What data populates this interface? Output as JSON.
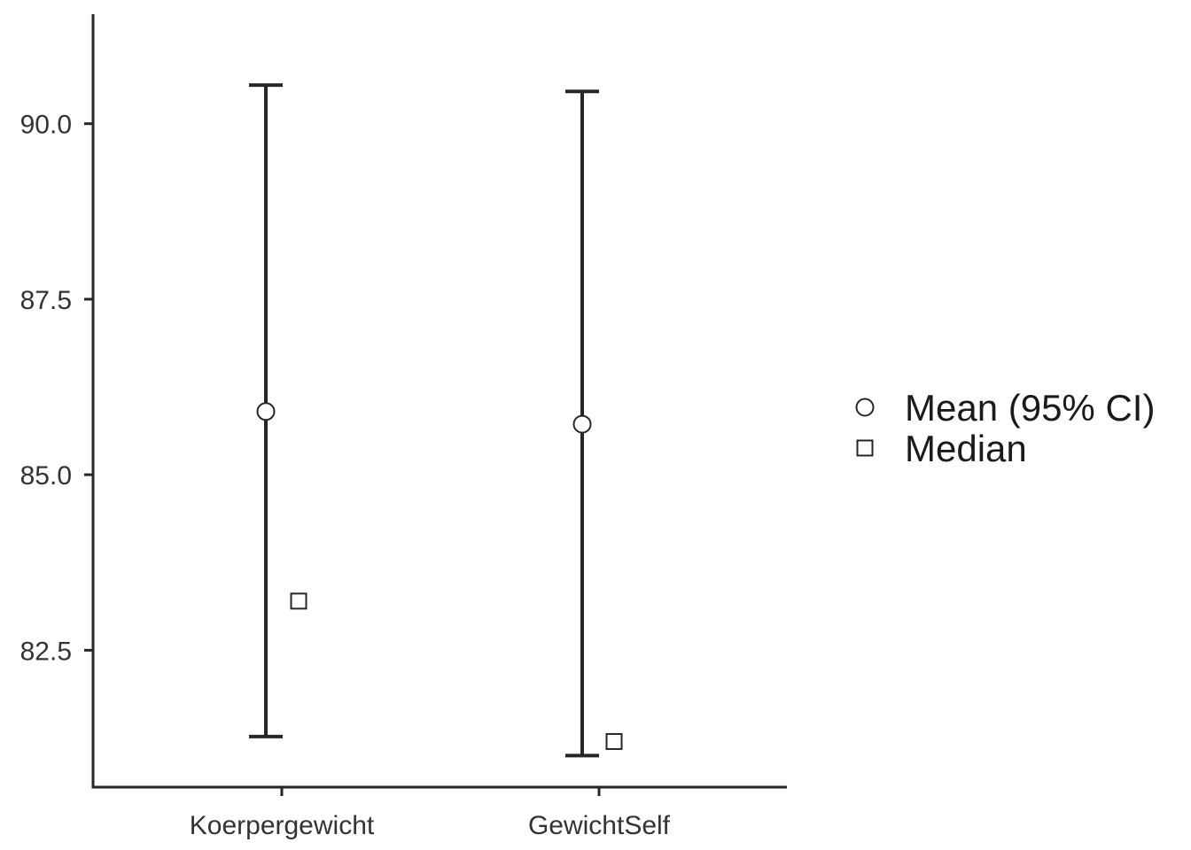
{
  "chart_data": {
    "type": "errorbar",
    "categories": [
      "Koerpergewicht",
      "GewichtSelf"
    ],
    "series": [
      {
        "name": "Mean (95% CI)",
        "marker": "circle",
        "values": [
          85.9,
          85.72
        ],
        "ci_lower": [
          81.27,
          81.0
        ],
        "ci_upper": [
          90.55,
          90.46
        ]
      },
      {
        "name": "Median",
        "marker": "square",
        "values": [
          83.2,
          81.2
        ]
      }
    ],
    "y_ticks": [
      "82.5",
      "85.0",
      "87.5",
      "90.0"
    ],
    "ylim": [
      80.55,
      91.56
    ],
    "legend_position": "right",
    "grid": false,
    "colors": {
      "line": "#262626",
      "axis": "#262626",
      "marker_fill": "#ffffff",
      "marker_stroke": "#262626"
    }
  }
}
